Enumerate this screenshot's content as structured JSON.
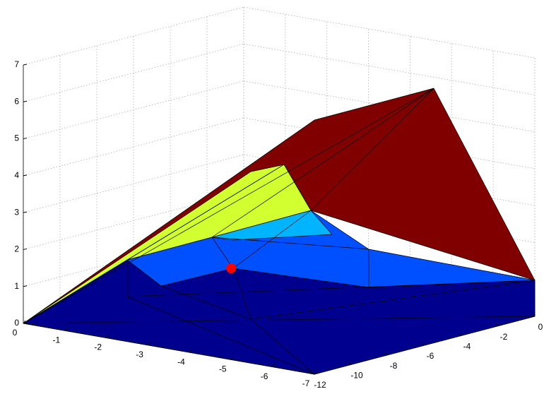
{
  "chart_data": {
    "type": "surface3d",
    "xlim": [
      -7,
      0
    ],
    "xticks": [
      0,
      -1,
      -2,
      -3,
      -4,
      -5,
      -6,
      -7
    ],
    "ylim": [
      -12,
      0
    ],
    "yticks": [
      0,
      -2,
      -4,
      -6,
      -8,
      -10,
      -12
    ],
    "zlim": [
      0,
      7
    ],
    "zticks": [
      0,
      1,
      2,
      3,
      4,
      5,
      6,
      7
    ],
    "grid": true
  }
}
